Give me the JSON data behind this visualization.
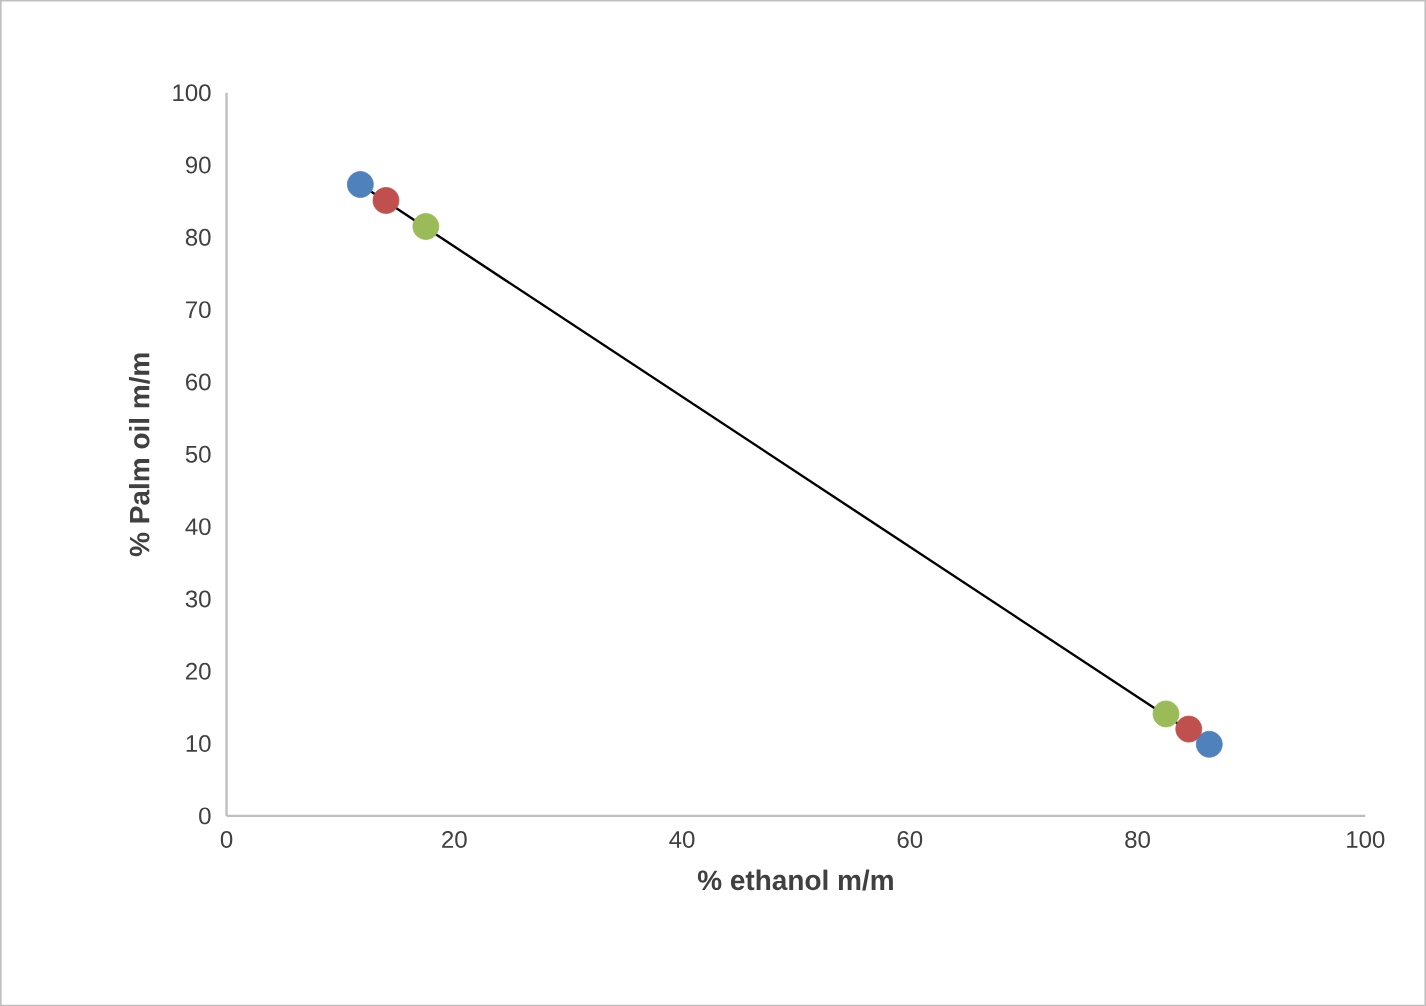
{
  "chart_data": {
    "type": "scatter",
    "xlabel": "% ethanol m/m",
    "ylabel": "% Palm oil m/m",
    "xlim": [
      0,
      100
    ],
    "xticks": [
      0,
      20,
      40,
      60,
      80,
      100
    ],
    "ylim": [
      0,
      100
    ],
    "yticks": [
      0,
      10,
      20,
      30,
      40,
      50,
      60,
      70,
      80,
      90,
      100
    ],
    "grid": false,
    "series": [
      {
        "color": "#4f81bd",
        "x": [
          11.75,
          86.3
        ],
        "values": [
          87.3,
          9.9
        ]
      },
      {
        "color": "#c0504d",
        "x": [
          14,
          84.5
        ],
        "values": [
          85.1,
          12
        ]
      },
      {
        "color": "#9bbb59",
        "x": [
          17.5,
          82.5
        ],
        "values": [
          81.5,
          14.1
        ]
      },
      {
        "type": "line",
        "color": "#000000",
        "x": [
          11.75,
          86.3
        ],
        "values": [
          87.3,
          9.9
        ]
      }
    ]
  }
}
